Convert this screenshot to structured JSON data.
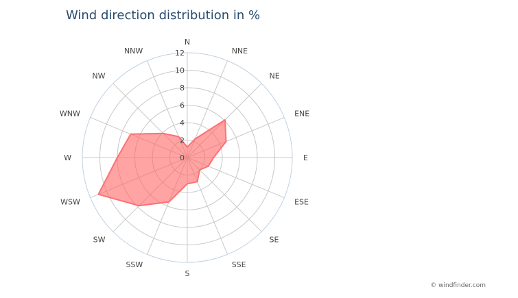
{
  "chart_data": {
    "type": "radar-area",
    "title": "Wind direction distribution in %",
    "categories": [
      "N",
      "NNE",
      "NE",
      "ENE",
      "E",
      "ESE",
      "SE",
      "SSE",
      "S",
      "SSW",
      "SW",
      "WSW",
      "W",
      "WNW",
      "NW",
      "NNW"
    ],
    "series": [
      {
        "values": [
          1.2,
          2.3,
          6.1,
          4.8,
          3.0,
          2.6,
          2.0,
          3.0,
          3.0,
          5.5,
          7.8,
          11.0,
          8.0,
          7.0,
          3.9,
          2.6
        ]
      }
    ],
    "ylim": [
      0,
      12
    ],
    "ticks": [
      "0",
      "2",
      "4",
      "6",
      "8",
      "10",
      "12"
    ],
    "grid": true,
    "colors": {
      "fill": "#ff6666",
      "stroke": "#ff6f73",
      "grid": "#c8c8c8",
      "outer_ring": "#c0d0e0",
      "title": "#274b6d"
    }
  },
  "credit": "© windfinder.com"
}
